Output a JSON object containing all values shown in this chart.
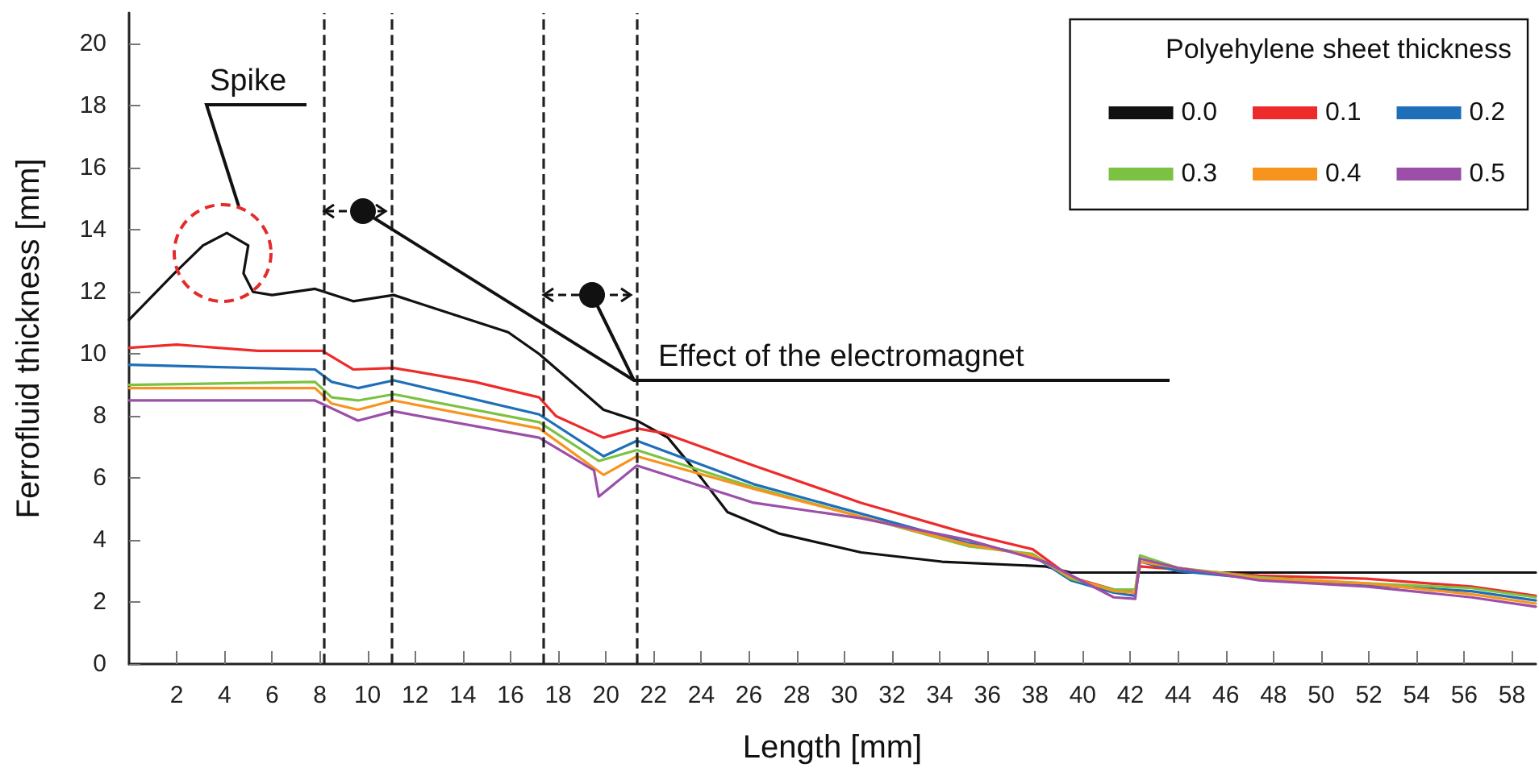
{
  "chart_data": {
    "type": "line",
    "xlabel": "Length [mm]",
    "ylabel": "Ferrofluid thickness [mm]",
    "legend_title": "Polyehylene sheet thickness",
    "legend": "top right",
    "grid": false,
    "line_style": "solid",
    "marker": "none",
    "xlim": [
      0,
      59
    ],
    "xticks": [
      2,
      4,
      6,
      8,
      10,
      12,
      14,
      16,
      18,
      20,
      22,
      24,
      26,
      28,
      30,
      32,
      34,
      36,
      38,
      40,
      42,
      44,
      46,
      48,
      50,
      52,
      54,
      56,
      58
    ],
    "ylim": [
      0,
      21
    ],
    "yticks": [
      0,
      2,
      4,
      6,
      8,
      10,
      12,
      14,
      16,
      18,
      20
    ],
    "annotations": [
      "Spike",
      "Effect of the electromagnet"
    ],
    "ref_lines": [
      {
        "axis": "x",
        "value": 8.2,
        "color": "#222222",
        "line_style": "dashed"
      },
      {
        "axis": "x",
        "value": 11,
        "color": "#222222",
        "line_style": "dashed"
      },
      {
        "axis": "x",
        "value": 17.4,
        "color": "#222222",
        "line_style": "dashed"
      },
      {
        "axis": "x",
        "value": 21.3,
        "color": "#222222",
        "line_style": "dashed"
      }
    ],
    "series": [
      {
        "name": "0.0",
        "color": "#111111",
        "x": [
          0,
          1.9,
          3.1,
          4.1,
          5.0,
          4.8,
          5.2,
          6.0,
          7.8,
          9.4,
          11.1,
          13.5,
          15.9,
          17.2,
          18.4,
          19.9,
          21.3,
          22.6,
          24.0,
          25.1,
          27.3,
          30.7,
          34.1,
          38.4,
          39.5,
          59
        ],
        "values": [
          11.1,
          12.6,
          13.5,
          13.9,
          13.5,
          12.6,
          12.0,
          11.9,
          12.1,
          11.7,
          11.9,
          11.3,
          10.7,
          10.0,
          9.2,
          8.2,
          7.85,
          7.3,
          6.0,
          4.9,
          4.2,
          3.6,
          3.3,
          3.15,
          2.95,
          2.95
        ]
      },
      {
        "name": "0.1",
        "color": "#ee2b2b",
        "x": [
          0,
          2,
          5.4,
          8.1,
          9.4,
          11.1,
          14.5,
          17.2,
          17.9,
          19.9,
          21.3,
          22.4,
          26.2,
          30.7,
          35.2,
          37.9,
          39.5,
          41.3,
          42.2,
          42.4,
          44,
          47.4,
          51.9,
          56.3,
          59
        ],
        "values": [
          10.2,
          10.3,
          10.1,
          10.1,
          9.5,
          9.55,
          9.1,
          8.6,
          8.0,
          7.3,
          7.6,
          7.45,
          6.4,
          5.2,
          4.2,
          3.7,
          2.8,
          2.4,
          2.3,
          3.15,
          3.05,
          2.85,
          2.75,
          2.5,
          2.2
        ]
      },
      {
        "name": "0.2",
        "color": "#1f6fb8",
        "x": [
          0,
          7.8,
          8.5,
          9.6,
          11.1,
          17.2,
          19.9,
          21.3,
          26.2,
          35.2,
          37.9,
          39.5,
          41.3,
          42.2,
          42.4,
          44,
          47.4,
          51.9,
          56.3,
          59
        ],
        "values": [
          9.65,
          9.5,
          9.1,
          8.9,
          9.15,
          8.05,
          6.7,
          7.2,
          5.8,
          3.9,
          3.5,
          2.7,
          2.3,
          2.2,
          3.3,
          3.0,
          2.75,
          2.55,
          2.35,
          2.05
        ]
      },
      {
        "name": "0.3",
        "color": "#7cc242",
        "x": [
          0,
          7.8,
          8.5,
          9.6,
          11.1,
          17.2,
          19.7,
          21.3,
          26.2,
          35.2,
          37.9,
          39.5,
          41.3,
          42.2,
          42.4,
          44,
          47.4,
          51.9,
          56.3,
          59
        ],
        "values": [
          9.0,
          9.1,
          8.6,
          8.5,
          8.7,
          7.8,
          6.55,
          6.9,
          5.7,
          3.8,
          3.55,
          2.75,
          2.4,
          2.4,
          3.5,
          3.1,
          2.8,
          2.6,
          2.45,
          2.15
        ]
      },
      {
        "name": "0.4",
        "color": "#f7941d",
        "x": [
          0,
          7.8,
          8.5,
          9.6,
          11.1,
          17.2,
          19.9,
          21.3,
          26.2,
          35.2,
          37.9,
          39.5,
          41.3,
          42.2,
          42.4,
          44,
          47.4,
          51.9,
          56.3,
          59
        ],
        "values": [
          8.9,
          8.9,
          8.4,
          8.2,
          8.5,
          7.6,
          6.1,
          6.7,
          5.65,
          3.85,
          3.5,
          2.8,
          2.35,
          2.3,
          3.3,
          3.1,
          2.75,
          2.6,
          2.25,
          1.95
        ]
      },
      {
        "name": "0.5",
        "color": "#9b4fa8",
        "x": [
          0,
          7.8,
          9.6,
          11.1,
          17.2,
          19.5,
          19.7,
          21.3,
          26.2,
          30.7,
          35.2,
          38.4,
          41.3,
          42.2,
          42.4,
          44,
          47.4,
          51.9,
          56.3,
          59
        ],
        "values": [
          8.5,
          8.5,
          7.85,
          8.15,
          7.3,
          6.25,
          5.4,
          6.4,
          5.2,
          4.7,
          4.0,
          3.3,
          2.15,
          2.1,
          3.4,
          3.1,
          2.7,
          2.5,
          2.15,
          1.85
        ]
      }
    ]
  }
}
